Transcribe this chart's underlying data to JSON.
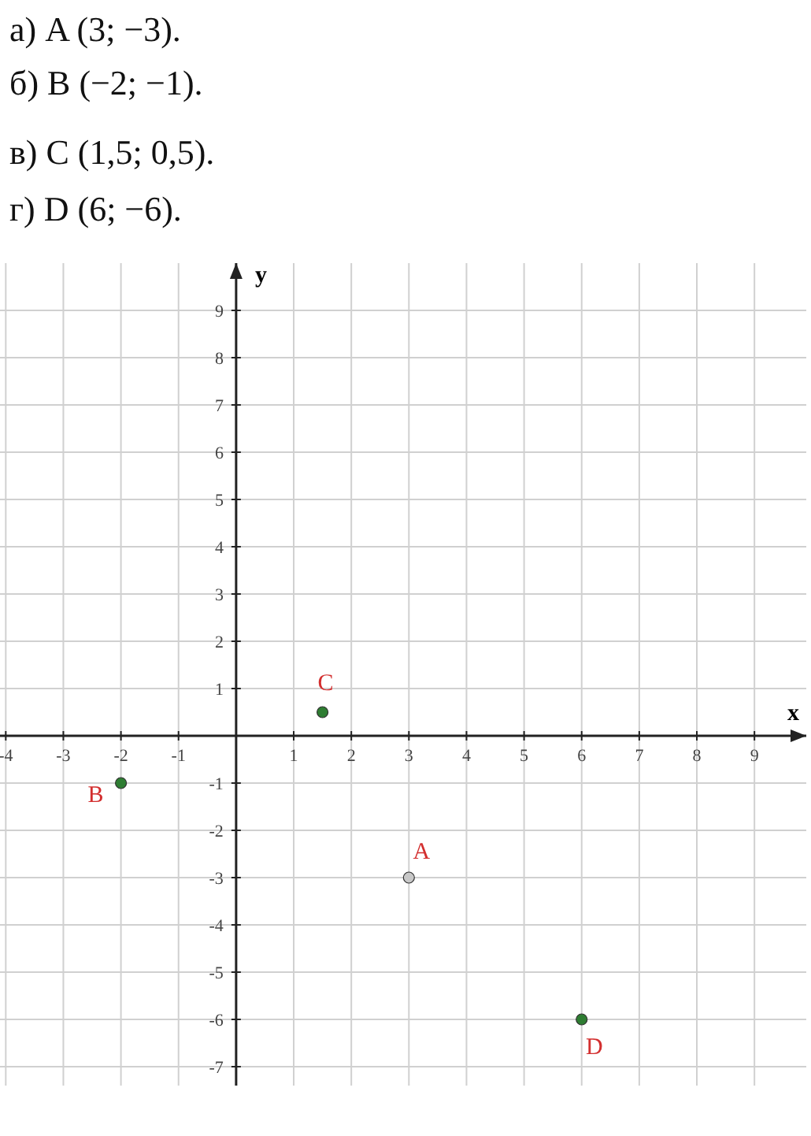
{
  "chart_data": {
    "type": "scatter",
    "xlabel": "x",
    "ylabel": "y",
    "x": [
      3,
      -2,
      1.5,
      6
    ],
    "values": [
      -3,
      -1,
      0.5,
      -6
    ],
    "colors": [
      "#c8c8c8",
      "#2e7d32",
      "#2e7d32",
      "#2e7d32"
    ],
    "xlim": [
      -4.1,
      9.9
    ],
    "ylim": [
      -7.4,
      10
    ],
    "xticks": [
      -4,
      -3,
      -2,
      -1,
      1,
      2,
      3,
      4,
      5,
      6,
      7,
      8,
      9
    ],
    "yticks": [
      -7,
      -6,
      -5,
      -4,
      -3,
      -2,
      -1,
      1,
      2,
      3,
      4,
      5,
      6,
      7,
      8,
      9
    ],
    "grid": true,
    "marker": "circle",
    "annotations": [
      "а) A (3; −3).",
      "б) B (−2; −1).",
      "в) C (1,5; 0,5).",
      "г) D (6; −6).",
      {
        "text": "A",
        "x": 3,
        "y": -3
      },
      {
        "text": "B",
        "x": -2,
        "y": -1
      },
      {
        "text": "C",
        "x": 1.5,
        "y": 0.5
      },
      {
        "text": "D",
        "x": 6,
        "y": -6
      }
    ]
  }
}
